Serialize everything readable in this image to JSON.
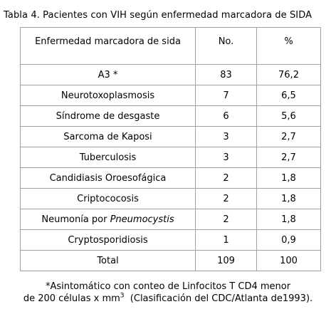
{
  "caption": "Tabla 4. Pacientes con VIH según enfermedad marcadora de SIDA",
  "table": {
    "headers": [
      "Enfermedad marcadora de sida",
      "No.",
      "%"
    ],
    "rows": [
      {
        "name": "A3 *",
        "name_italic": "",
        "no": "83",
        "pct": "76,2"
      },
      {
        "name": "Neurotoxoplasmosis",
        "name_italic": "",
        "no": "7",
        "pct": "6,5"
      },
      {
        "name": "Síndrome de desgaste",
        "name_italic": "",
        "no": "6",
        "pct": "5,6"
      },
      {
        "name": "Sarcoma de Kaposi",
        "name_italic": "",
        "no": "3",
        "pct": "2,7"
      },
      {
        "name": "Tuberculosis",
        "name_italic": "",
        "no": "3",
        "pct": "2,7"
      },
      {
        "name": "Candidiasis Oroesofágica",
        "name_italic": "",
        "no": "2",
        "pct": "1,8"
      },
      {
        "name": "Criptococosis",
        "name_italic": "",
        "no": "2",
        "pct": "1,8"
      },
      {
        "name": "Neumonía por ",
        "name_italic": "Pneumocystis",
        "no": "2",
        "pct": "1,8"
      },
      {
        "name": "Cryptosporidiosis",
        "name_italic": "",
        "no": "1",
        "pct": "0,9"
      },
      {
        "name": "Total",
        "name_italic": "",
        "no": "109",
        "pct": "100"
      }
    ]
  },
  "footnote": {
    "line1": "*Asintomático con conteo de Linfocitos T CD4 menor",
    "line2_before": "de 200 células x mm",
    "line2_sup": "3",
    "line2_after": "  (Clasificación del CDC/Atlanta de1993)."
  }
}
